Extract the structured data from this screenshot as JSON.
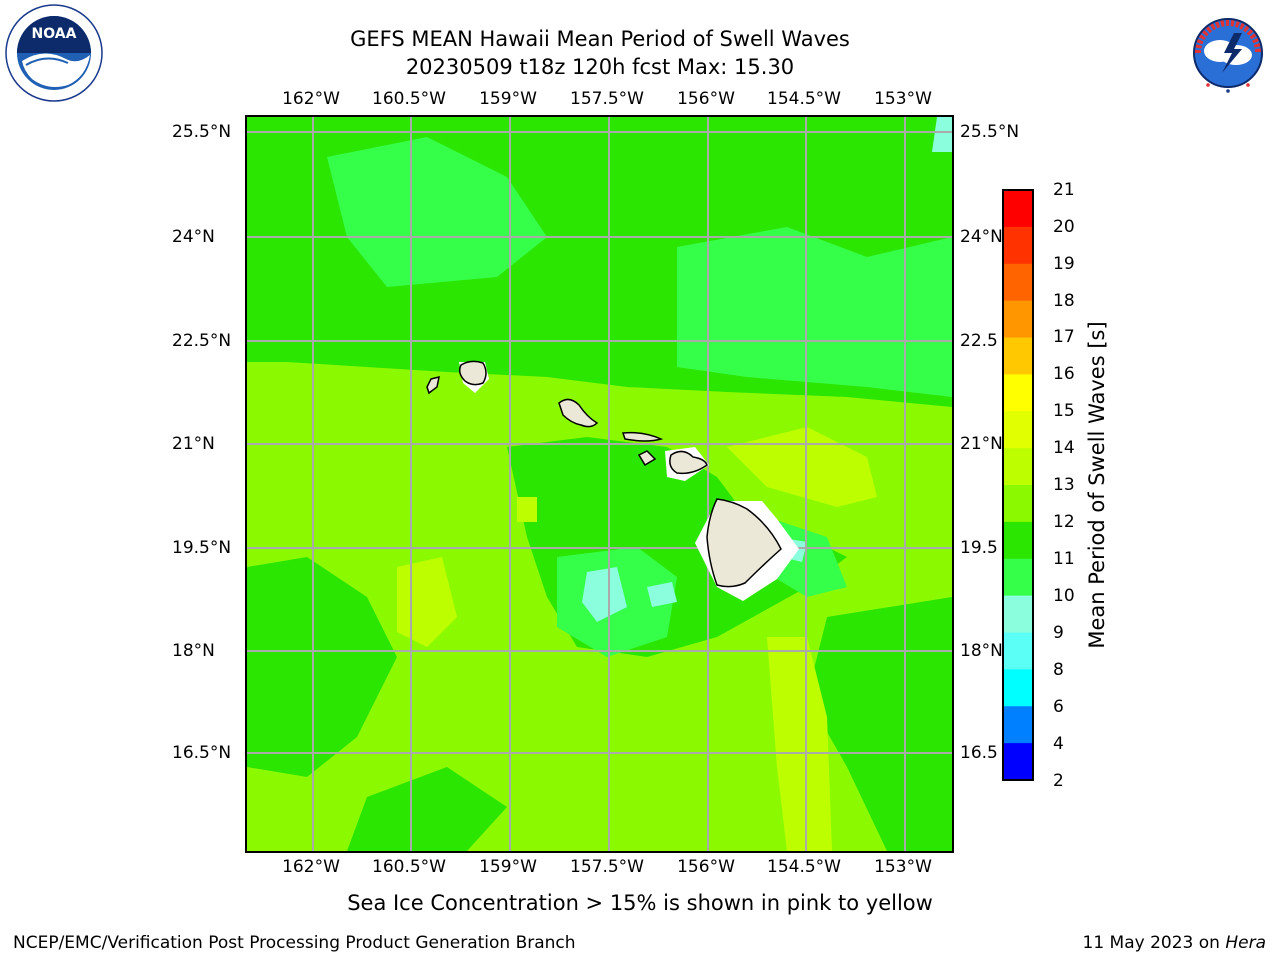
{
  "header": {
    "title_line1": "GEFS MEAN Hawaii Mean Period of Swell Waves",
    "title_line2": "20230509 t18z 120h fcst   Max: 15.30"
  },
  "logos": {
    "left": {
      "name": "noaa-logo",
      "text": "NOAA",
      "ring_text": "NATIONAL OCEANIC AND ATMOSPHERIC ADMINISTRATION · U.S. DEPARTMENT OF COMMERCE"
    },
    "right": {
      "name": "nws-logo",
      "ring_text": "NATIONAL WEATHER SERVICE"
    }
  },
  "map": {
    "lon_ticks": [
      "162°W",
      "160.5°W",
      "159°W",
      "157.5°W",
      "156°W",
      "154.5°W",
      "153°W"
    ],
    "lat_ticks_left": [
      "25.5°N",
      "24°N",
      "22.5°N",
      "21°N",
      "19.5°N",
      "18°N",
      "16.5°N"
    ],
    "lat_ticks_right": [
      "25.5°N",
      "24°N",
      "22.5",
      "21°N",
      "19.5",
      "18°N",
      "16.5"
    ],
    "lon_range": [
      -163,
      -152.2
    ],
    "lat_range": [
      15,
      25.7
    ],
    "grid": true,
    "land_color": "#ece8d8",
    "base_color": "#8bfa00"
  },
  "colorbar": {
    "title": "Mean Period of Swell Waves [s]",
    "labels": [
      "21",
      "20",
      "19",
      "18",
      "17",
      "16",
      "15",
      "14",
      "13",
      "12",
      "11",
      "10",
      "9",
      "8",
      "6",
      "4",
      "2"
    ],
    "colors_top_to_bottom": [
      "#ff0000",
      "#ff3200",
      "#ff6400",
      "#ff9600",
      "#ffc800",
      "#ffff00",
      "#e1ff00",
      "#beff00",
      "#8bfa00",
      "#2be600",
      "#36ff4a",
      "#8bffdd",
      "#5cfff5",
      "#00ffff",
      "#0080ff",
      "#0000ff"
    ]
  },
  "footer": {
    "sea_ice_note": "Sea Ice Concentration > 15% is shown in pink to yellow",
    "left": "NCEP/EMC/Verification Post Processing Product Generation Branch",
    "date": "11 May 2023 on ",
    "host": "Hera"
  }
}
